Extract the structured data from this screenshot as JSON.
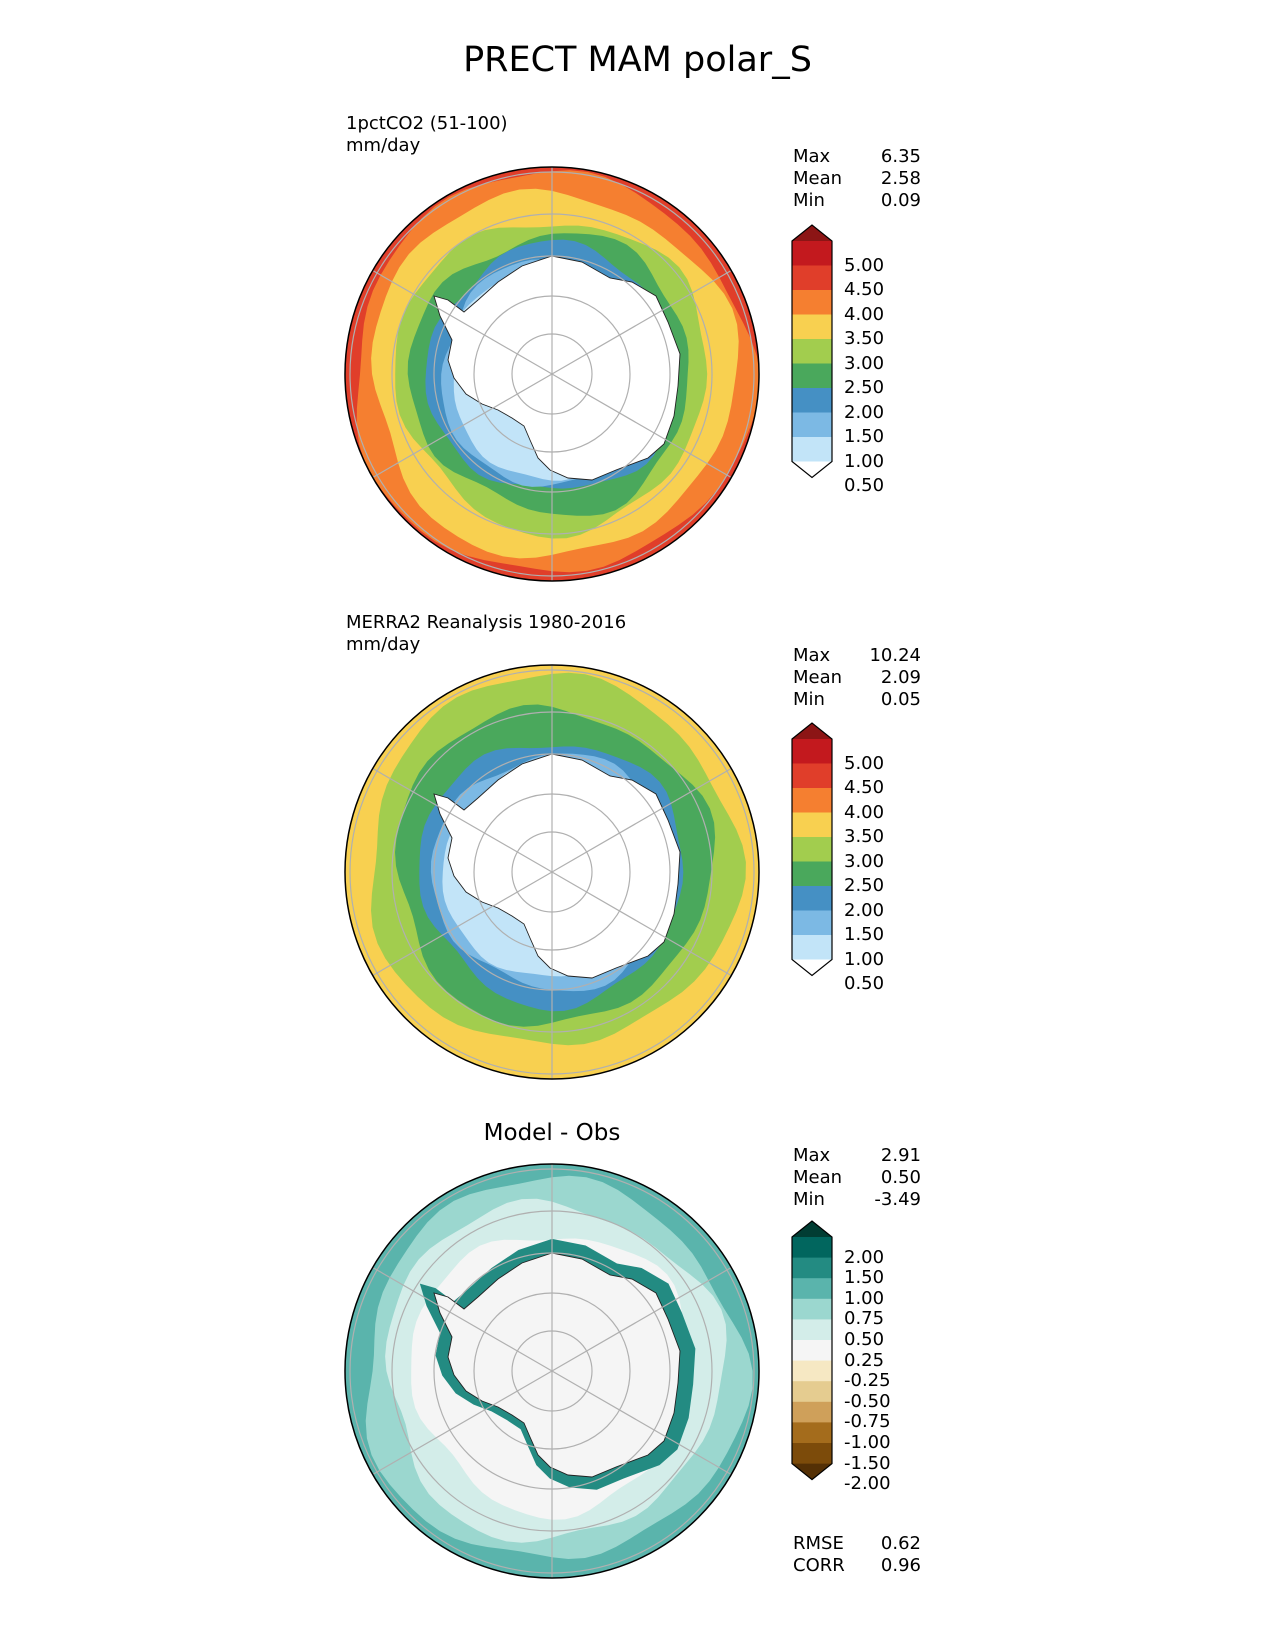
{
  "title": "PRECT MAM polar_S",
  "panels": [
    {
      "label_line1": "1pctCO2 (51-100)",
      "label_line2": "mm/day",
      "stats": [
        {
          "name": "Max",
          "value": "6.35"
        },
        {
          "name": "Mean",
          "value": "2.58"
        },
        {
          "name": "Min",
          "value": "0.09"
        }
      ],
      "colorbar_levels": [
        "5.00",
        "4.50",
        "4.00",
        "3.50",
        "3.00",
        "2.50",
        "2.00",
        "1.50",
        "1.00",
        "0.50"
      ],
      "colorbar_colors": [
        "#8c1515",
        "#c3191e",
        "#e03e2a",
        "#f57f30",
        "#f8d050",
        "#a2cd4e",
        "#4aa85c",
        "#4590c4",
        "#7cb9e4",
        "#c2e4f8",
        "#ffffff"
      ]
    },
    {
      "label_line1": "MERRA2 Reanalysis 1980-2016",
      "label_line2": "mm/day",
      "stats": [
        {
          "name": "Max",
          "value": "10.24"
        },
        {
          "name": "Mean",
          "value": "2.09"
        },
        {
          "name": "Min",
          "value": "0.05"
        }
      ],
      "colorbar_levels": [
        "5.00",
        "4.50",
        "4.00",
        "3.50",
        "3.00",
        "2.50",
        "2.00",
        "1.50",
        "1.00",
        "0.50"
      ],
      "colorbar_colors": [
        "#8c1515",
        "#c3191e",
        "#e03e2a",
        "#f57f30",
        "#f8d050",
        "#a2cd4e",
        "#4aa85c",
        "#4590c4",
        "#7cb9e4",
        "#c2e4f8",
        "#ffffff"
      ]
    },
    {
      "label_line1": "Model - Obs",
      "stats": [
        {
          "name": "Max",
          "value": "2.91"
        },
        {
          "name": "Mean",
          "value": "0.50"
        },
        {
          "name": "Min",
          "value": "-3.49"
        }
      ],
      "colorbar_levels": [
        "2.00",
        "1.50",
        "1.00",
        "0.75",
        "0.50",
        "0.25",
        "-0.25",
        "-0.50",
        "-0.75",
        "-1.00",
        "-1.50",
        "-2.00"
      ],
      "colorbar_colors": [
        "#013d33",
        "#01665e",
        "#238b82",
        "#5ab4ac",
        "#9bd7cf",
        "#d3ede9",
        "#f5f5f5",
        "#f6e8c3",
        "#e5cc90",
        "#cfa05a",
        "#a46c1c",
        "#7c4b0a",
        "#543005"
      ],
      "footer_stats": [
        {
          "name": "RMSE",
          "value": "0.62"
        },
        {
          "name": "CORR",
          "value": "0.96"
        }
      ]
    }
  ],
  "colors": {
    "field1": {
      "ocean_outer": "#e03e2a",
      "ring_orange": "#f57f30",
      "ring_yellow": "#f8d050",
      "ring_lightgreen": "#a2cd4e",
      "ring_green": "#4aa85c",
      "ring_blue": "#4590c4",
      "ring_lightblue": "#7cb9e4",
      "ring_paleblue": "#c2e4f8",
      "interior": "#ffffff"
    },
    "field2": {
      "ocean_outer": "#f8d050",
      "ring_lightgreen": "#a2cd4e",
      "ring_green": "#4aa85c",
      "ring_blue": "#4590c4",
      "ring_lightblue": "#7cb9e4",
      "ring_paleblue": "#c2e4f8",
      "interior": "#ffffff"
    },
    "diff": {
      "outer": "#5ab4ac",
      "mid": "#9bd7cf",
      "inner": "#d3ede9",
      "interior": "#f5f5f5",
      "coast": "#238b82"
    }
  }
}
